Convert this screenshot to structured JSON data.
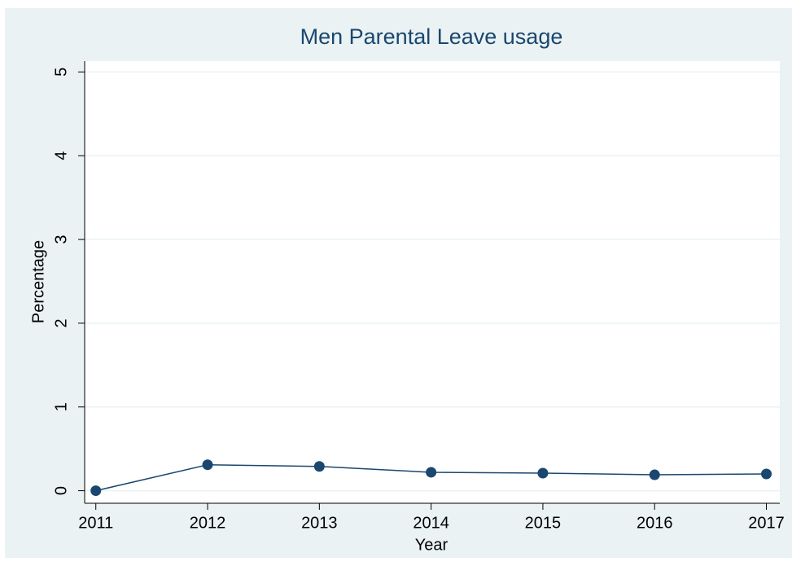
{
  "chart_data": {
    "type": "line",
    "title": "Men Parental Leave usage",
    "x_label": "Year",
    "y_label": "Percentage",
    "x": [
      2011,
      2012,
      2013,
      2014,
      2015,
      2016,
      2017
    ],
    "series": [
      {
        "color": "#1a476f",
        "values": [
          0,
          0.31,
          0.29,
          0.22,
          0.21,
          0.19,
          0.2
        ]
      }
    ],
    "xlim": [
      2010.9,
      2017.12
    ],
    "xticks": [
      2011,
      2012,
      2013,
      2014,
      2015,
      2016,
      2017
    ],
    "ylim": [
      -0.15,
      5.13
    ],
    "yticks": [
      0,
      1,
      2,
      3,
      4,
      5
    ],
    "grid": true
  }
}
